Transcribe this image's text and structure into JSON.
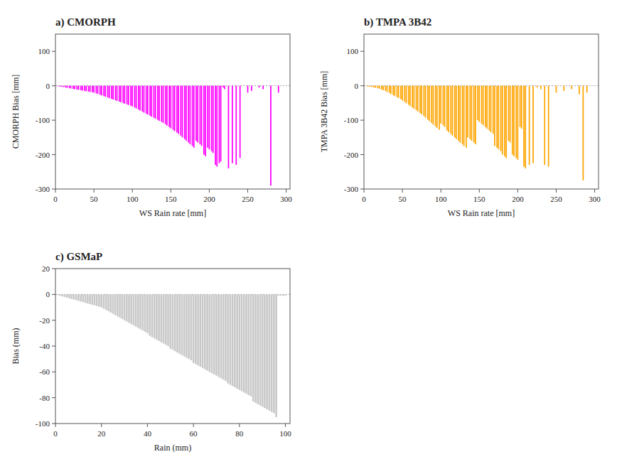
{
  "chart_data": [
    {
      "type": "bar",
      "title": "a)  CMORPH",
      "xlabel": "WS Rain rate [mm]",
      "ylabel": "CMORPH Bias [mm]",
      "color": "#FF00FF",
      "xlim": [
        0,
        305
      ],
      "ylim": [
        -300,
        150
      ],
      "yticks": [
        -300,
        -200,
        -100,
        0,
        100
      ],
      "xticks": [
        0,
        50,
        100,
        150,
        200,
        250,
        300
      ],
      "x": [
        2,
        5,
        7,
        10,
        13,
        15,
        18,
        20,
        23,
        25,
        28,
        30,
        33,
        35,
        38,
        40,
        43,
        45,
        48,
        50,
        53,
        55,
        58,
        60,
        63,
        65,
        68,
        70,
        73,
        75,
        78,
        80,
        83,
        85,
        88,
        90,
        93,
        95,
        98,
        100,
        103,
        105,
        108,
        110,
        113,
        115,
        118,
        120,
        123,
        125,
        128,
        130,
        133,
        135,
        138,
        140,
        143,
        145,
        148,
        150,
        153,
        155,
        158,
        160,
        163,
        165,
        168,
        170,
        173,
        175,
        178,
        180,
        183,
        185,
        188,
        190,
        193,
        195,
        198,
        200,
        203,
        205,
        208,
        210,
        213,
        215,
        218,
        220,
        225,
        230,
        235,
        240,
        250,
        255,
        265,
        270,
        280,
        290
      ],
      "values": [
        -1,
        -2,
        -3,
        -4,
        -5,
        -6,
        -7,
        -8,
        -9,
        -10,
        -11,
        -12,
        -13,
        -14,
        -15,
        -16,
        -17,
        -18,
        -19,
        -20,
        -22,
        -24,
        -26,
        -28,
        -30,
        -32,
        -34,
        -36,
        -38,
        -40,
        -42,
        -44,
        -46,
        -48,
        -50,
        -52,
        -54,
        -56,
        -58,
        -60,
        -63,
        -66,
        -69,
        -72,
        -75,
        -78,
        -81,
        -84,
        -87,
        -90,
        -93,
        -96,
        -99,
        -102,
        -105,
        -108,
        -112,
        -116,
        -120,
        -124,
        -128,
        -132,
        -136,
        -140,
        -145,
        -150,
        -155,
        -160,
        -165,
        -170,
        -175,
        -180,
        -160,
        -165,
        -170,
        -175,
        -200,
        -205,
        -180,
        -185,
        -190,
        -195,
        -230,
        -235,
        -225,
        -220,
        -5,
        -10,
        -240,
        -225,
        -230,
        -210,
        -20,
        -15,
        -5,
        -10,
        -290,
        -20
      ]
    },
    {
      "type": "bar",
      "title": "b)  TMPA 3B42",
      "xlabel": "WS Rain rate [mm]",
      "ylabel": "TMPA 3B42 Bias [mm]",
      "color": "#FFA500",
      "xlim": [
        0,
        305
      ],
      "ylim": [
        -300,
        150
      ],
      "yticks": [
        -300,
        -200,
        -100,
        0,
        100
      ],
      "xticks": [
        0,
        50,
        100,
        150,
        200,
        250,
        300
      ],
      "x": [
        2,
        5,
        7,
        10,
        13,
        15,
        18,
        20,
        23,
        25,
        28,
        30,
        33,
        35,
        38,
        40,
        43,
        45,
        48,
        50,
        53,
        55,
        58,
        60,
        63,
        65,
        68,
        70,
        73,
        75,
        78,
        80,
        83,
        85,
        88,
        90,
        93,
        95,
        98,
        100,
        103,
        105,
        108,
        110,
        113,
        115,
        118,
        120,
        123,
        125,
        128,
        130,
        133,
        135,
        138,
        140,
        143,
        145,
        148,
        150,
        153,
        155,
        158,
        160,
        163,
        165,
        168,
        170,
        173,
        175,
        178,
        180,
        183,
        185,
        188,
        190,
        193,
        195,
        198,
        200,
        203,
        205,
        208,
        210,
        215,
        220,
        225,
        230,
        235,
        240,
        250,
        260,
        270,
        280,
        285,
        290
      ],
      "values": [
        -1,
        -2,
        -3,
        -4,
        -5,
        -6,
        -7,
        -9,
        -11,
        -13,
        -15,
        -18,
        -21,
        -24,
        -27,
        -30,
        -33,
        -36,
        -39,
        -43,
        -47,
        -51,
        -55,
        -59,
        -63,
        -67,
        -71,
        -75,
        -79,
        -83,
        -88,
        -93,
        -98,
        -103,
        -108,
        -113,
        -118,
        -123,
        -128,
        -110,
        -115,
        -120,
        -130,
        -135,
        -140,
        -145,
        -150,
        -155,
        -160,
        -165,
        -170,
        -175,
        -180,
        -150,
        -155,
        -160,
        -165,
        -170,
        -100,
        -105,
        -110,
        -115,
        -120,
        -125,
        -130,
        -135,
        -140,
        -175,
        -180,
        -185,
        -190,
        -200,
        -205,
        -210,
        -160,
        -165,
        -200,
        -205,
        -210,
        -215,
        -120,
        -125,
        -235,
        -240,
        -230,
        -225,
        -5,
        -10,
        -230,
        -235,
        -20,
        -15,
        -10,
        -25,
        -275,
        -20
      ]
    },
    {
      "type": "bar",
      "title": "c)  GSMaP",
      "xlabel": "Rain (mm)",
      "ylabel": "Bias (mm)",
      "color": "#C8C8C8",
      "xlim": [
        0,
        102
      ],
      "ylim": [
        -100,
        20
      ],
      "yticks": [
        -100,
        -80,
        -60,
        -40,
        -20,
        0,
        20
      ],
      "xticks": [
        0,
        20,
        40,
        60,
        80,
        100
      ],
      "x": [
        1,
        2,
        3,
        4,
        5,
        6,
        7,
        8,
        9,
        10,
        11,
        12,
        13,
        14,
        15,
        16,
        17,
        18,
        19,
        20,
        21,
        22,
        23,
        24,
        25,
        26,
        27,
        28,
        29,
        30,
        31,
        32,
        33,
        34,
        35,
        36,
        37,
        38,
        39,
        40,
        41,
        42,
        43,
        44,
        45,
        46,
        47,
        48,
        49,
        50,
        51,
        52,
        53,
        54,
        55,
        56,
        57,
        58,
        59,
        60,
        61,
        62,
        63,
        64,
        65,
        66,
        67,
        68,
        69,
        70,
        71,
        72,
        73,
        74,
        75,
        76,
        77,
        78,
        79,
        80,
        81,
        82,
        83,
        84,
        85,
        86,
        87,
        88,
        89,
        90,
        91,
        92,
        93,
        94,
        95,
        96,
        97,
        98,
        99,
        100
      ],
      "values": [
        -0.5,
        -1.0,
        -1.5,
        -2.0,
        -2.5,
        -3.0,
        -3.5,
        -4.0,
        -4.5,
        -5.0,
        -5.5,
        -6.0,
        -6.5,
        -7.0,
        -7.5,
        -8.0,
        -8.5,
        -9.0,
        -9.5,
        -10.0,
        -11.0,
        -12.0,
        -13.0,
        -14.0,
        -15.0,
        -16.0,
        -17.0,
        -18.0,
        -19.0,
        -20.0,
        -21.0,
        -22.0,
        -23.0,
        -24.0,
        -25.0,
        -26.0,
        -27.0,
        -28.0,
        -29.0,
        -30.0,
        -32.0,
        -33.0,
        -34.0,
        -35.0,
        -36.0,
        -37.0,
        -38.0,
        -39.0,
        -40.0,
        -42.0,
        -43.0,
        -44.0,
        -45.0,
        -46.0,
        -47.0,
        -48.0,
        -49.0,
        -50.0,
        -51.0,
        -53.0,
        -54.0,
        -55.0,
        -56.0,
        -57.0,
        -58.0,
        -59.0,
        -60.0,
        -61.0,
        -62.0,
        -63.0,
        -64.0,
        -65.0,
        -66.0,
        -67.0,
        -69.0,
        -70.0,
        -71.0,
        -72.0,
        -73.0,
        -74.0,
        -75.0,
        -76.0,
        -77.0,
        -78.0,
        -79.0,
        -83.0,
        -84.0,
        -85.0,
        -86.0,
        -87.0,
        -88.0,
        -89.0,
        -90.0,
        -91.0,
        -92.0,
        -95.0,
        -1.0,
        -1.0,
        -1.0,
        -1.0
      ]
    }
  ]
}
